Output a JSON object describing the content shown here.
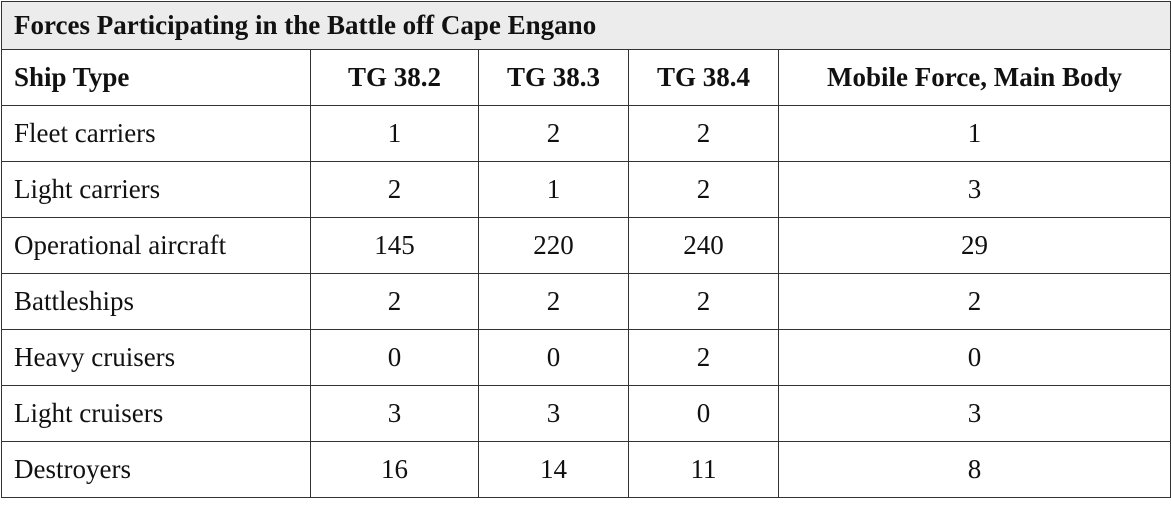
{
  "table": {
    "title": "Forces Participating in the Battle off Cape Engano",
    "header": [
      "Ship Type",
      "TG 38.2",
      "TG 38.3",
      "TG 38.4",
      "Mobile Force, Main Body"
    ],
    "rows": [
      [
        "Fleet carriers",
        1,
        2,
        2,
        1
      ],
      [
        "Light carriers",
        2,
        1,
        2,
        3
      ],
      [
        "Operational aircraft",
        145,
        220,
        240,
        29
      ],
      [
        "Battleships",
        2,
        2,
        2,
        2
      ],
      [
        "Heavy cruisers",
        0,
        0,
        2,
        0
      ],
      [
        "Light cruisers",
        3,
        3,
        0,
        3
      ],
      [
        "Destroyers",
        16,
        14,
        11,
        8
      ]
    ]
  }
}
